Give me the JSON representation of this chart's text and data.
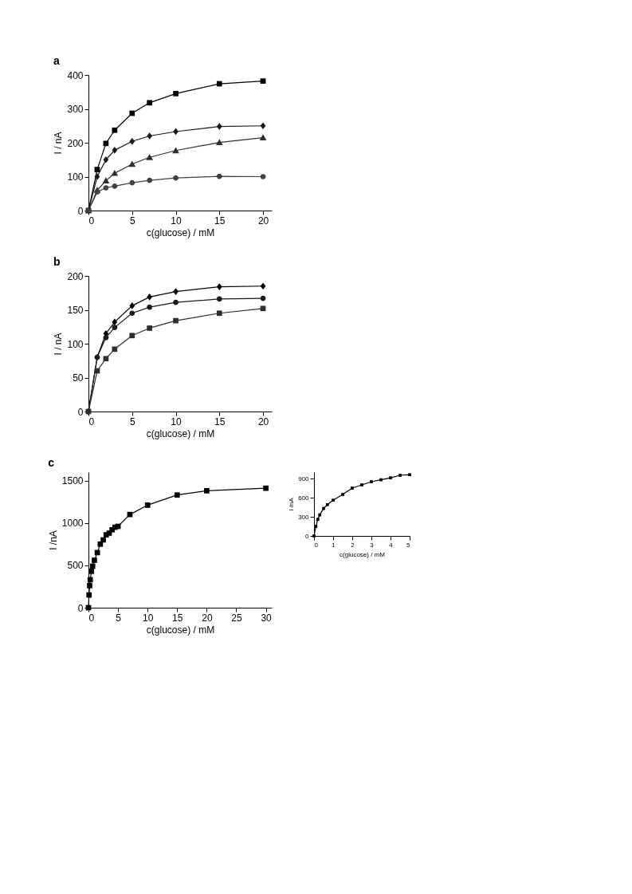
{
  "chart_data": [
    {
      "type": "line",
      "title": "a",
      "xlabel": "c(glucose) / mM",
      "ylabel": "I / nA",
      "x": [
        0,
        1,
        2,
        3,
        5,
        7,
        10,
        15,
        20
      ],
      "xlim": [
        0,
        21
      ],
      "xticks": [
        0,
        5,
        10,
        15,
        20
      ],
      "ylim": [
        0,
        400
      ],
      "yticks": [
        0,
        100,
        200,
        300,
        400
      ],
      "grid": false,
      "line_style": "solid",
      "series": [
        {
          "color": "#000000",
          "marker": "square",
          "values": [
            0,
            121,
            198,
            237,
            287,
            318,
            345,
            374,
            382
          ]
        },
        {
          "color": "#1a1a1a",
          "marker": "diamond",
          "values": [
            0,
            100,
            150,
            178,
            204,
            220,
            233,
            248,
            250
          ]
        },
        {
          "color": "#2e2e2e",
          "marker": "triangle",
          "values": [
            0,
            60,
            88,
            110,
            137,
            157,
            177,
            201,
            215
          ]
        },
        {
          "color": "#404040",
          "marker": "circle",
          "values": [
            0,
            55,
            67,
            72,
            82,
            89,
            96,
            101,
            100
          ]
        }
      ]
    },
    {
      "type": "line",
      "title": "b",
      "xlabel": "c(glucose) / mM",
      "ylabel": "I / nA",
      "x": [
        0,
        1,
        2,
        3,
        5,
        7,
        10,
        15,
        20
      ],
      "xlim": [
        0,
        21
      ],
      "xticks": [
        0,
        5,
        10,
        15,
        20
      ],
      "ylim": [
        0,
        200
      ],
      "yticks": [
        0,
        50,
        100,
        150,
        200
      ],
      "grid": false,
      "line_style": "solid",
      "series": [
        {
          "color": "#000000",
          "marker": "diamond",
          "values": [
            0,
            80,
            115,
            132,
            156,
            169,
            177,
            184,
            185
          ]
        },
        {
          "color": "#1a1a1a",
          "marker": "circle",
          "values": [
            0,
            80,
            109,
            124,
            145,
            154,
            161,
            166,
            167
          ]
        },
        {
          "color": "#2e2e2e",
          "marker": "square",
          "values": [
            0,
            60,
            78,
            92,
            112,
            123,
            134,
            145,
            152
          ]
        }
      ]
    },
    {
      "type": "line",
      "title": "c",
      "xlabel": "c(glucose) / mM",
      "ylabel": "I /nA",
      "x": [
        0,
        0.1,
        0.2,
        0.3,
        0.5,
        0.7,
        1,
        1.5,
        2,
        2.5,
        3,
        3.5,
        4,
        4.5,
        5,
        7,
        10,
        15,
        20,
        30
      ],
      "xlim": [
        0,
        31
      ],
      "xticks": [
        0,
        5,
        10,
        15,
        20,
        25,
        30
      ],
      "ylim": [
        0,
        1600
      ],
      "yticks": [
        0,
        500,
        {
          "value": 1000,
          "label": "1000"
        },
        {
          "value": 1500,
          "label": "1500"
        }
      ],
      "grid": false,
      "line_style": "solid",
      "series": [
        {
          "color": "#000000",
          "marker": "square",
          "values": [
            0,
            150,
            260,
            330,
            430,
            490,
            560,
            650,
            750,
            800,
            860,
            880,
            920,
            950,
            960,
            1100,
            1210,
            1330,
            1380,
            1410
          ]
        }
      ]
    },
    {
      "type": "line",
      "xlabel": "c(glucose) / mM",
      "ylabel": "I /nA",
      "x": [
        0,
        0.1,
        0.2,
        0.3,
        0.5,
        0.7,
        1,
        1.5,
        2,
        2.5,
        3,
        3.5,
        4,
        4.5,
        5
      ],
      "xlim": [
        0,
        5
      ],
      "xticks": [
        0,
        1,
        2,
        3,
        4,
        5
      ],
      "ylim": [
        0,
        1000
      ],
      "yticks": [
        0,
        300,
        600,
        900
      ],
      "grid": false,
      "line_style": "solid",
      "series": [
        {
          "color": "#000000",
          "marker": "square",
          "values": [
            0,
            150,
            260,
            330,
            430,
            490,
            560,
            650,
            750,
            800,
            850,
            880,
            910,
            950,
            960
          ]
        }
      ]
    }
  ]
}
